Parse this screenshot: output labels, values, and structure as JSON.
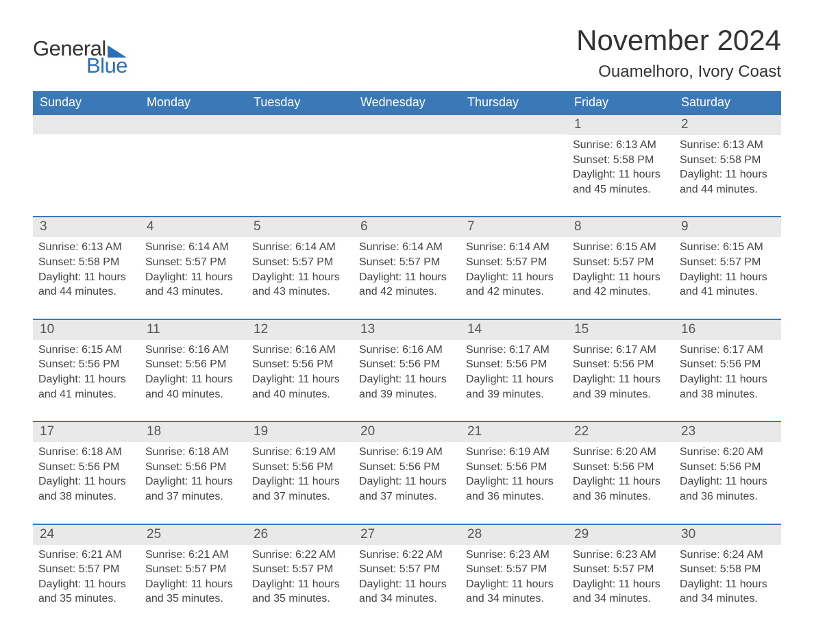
{
  "logo": {
    "word1": "General",
    "word2": "Blue"
  },
  "title": "November 2024",
  "location": "Ouamelhoro, Ivory Coast",
  "colors": {
    "header_bg": "#3b78b8",
    "header_text": "#ffffff",
    "daynum_bg": "#e9e9e9",
    "text": "#444444",
    "accent": "#2a70b8",
    "page_bg": "#ffffff"
  },
  "typography": {
    "title_fontsize": 42,
    "location_fontsize": 24,
    "dow_fontsize": 18,
    "daynum_fontsize": 19,
    "body_fontsize": 16
  },
  "days_of_week": [
    "Sunday",
    "Monday",
    "Tuesday",
    "Wednesday",
    "Thursday",
    "Friday",
    "Saturday"
  ],
  "weeks": [
    [
      {
        "empty": true
      },
      {
        "empty": true
      },
      {
        "empty": true
      },
      {
        "empty": true
      },
      {
        "empty": true
      },
      {
        "day": "1",
        "sunrise": "Sunrise: 6:13 AM",
        "sunset": "Sunset: 5:58 PM",
        "dl1": "Daylight: 11 hours",
        "dl2": "and 45 minutes."
      },
      {
        "day": "2",
        "sunrise": "Sunrise: 6:13 AM",
        "sunset": "Sunset: 5:58 PM",
        "dl1": "Daylight: 11 hours",
        "dl2": "and 44 minutes."
      }
    ],
    [
      {
        "day": "3",
        "sunrise": "Sunrise: 6:13 AM",
        "sunset": "Sunset: 5:58 PM",
        "dl1": "Daylight: 11 hours",
        "dl2": "and 44 minutes."
      },
      {
        "day": "4",
        "sunrise": "Sunrise: 6:14 AM",
        "sunset": "Sunset: 5:57 PM",
        "dl1": "Daylight: 11 hours",
        "dl2": "and 43 minutes."
      },
      {
        "day": "5",
        "sunrise": "Sunrise: 6:14 AM",
        "sunset": "Sunset: 5:57 PM",
        "dl1": "Daylight: 11 hours",
        "dl2": "and 43 minutes."
      },
      {
        "day": "6",
        "sunrise": "Sunrise: 6:14 AM",
        "sunset": "Sunset: 5:57 PM",
        "dl1": "Daylight: 11 hours",
        "dl2": "and 42 minutes."
      },
      {
        "day": "7",
        "sunrise": "Sunrise: 6:14 AM",
        "sunset": "Sunset: 5:57 PM",
        "dl1": "Daylight: 11 hours",
        "dl2": "and 42 minutes."
      },
      {
        "day": "8",
        "sunrise": "Sunrise: 6:15 AM",
        "sunset": "Sunset: 5:57 PM",
        "dl1": "Daylight: 11 hours",
        "dl2": "and 42 minutes."
      },
      {
        "day": "9",
        "sunrise": "Sunrise: 6:15 AM",
        "sunset": "Sunset: 5:57 PM",
        "dl1": "Daylight: 11 hours",
        "dl2": "and 41 minutes."
      }
    ],
    [
      {
        "day": "10",
        "sunrise": "Sunrise: 6:15 AM",
        "sunset": "Sunset: 5:56 PM",
        "dl1": "Daylight: 11 hours",
        "dl2": "and 41 minutes."
      },
      {
        "day": "11",
        "sunrise": "Sunrise: 6:16 AM",
        "sunset": "Sunset: 5:56 PM",
        "dl1": "Daylight: 11 hours",
        "dl2": "and 40 minutes."
      },
      {
        "day": "12",
        "sunrise": "Sunrise: 6:16 AM",
        "sunset": "Sunset: 5:56 PM",
        "dl1": "Daylight: 11 hours",
        "dl2": "and 40 minutes."
      },
      {
        "day": "13",
        "sunrise": "Sunrise: 6:16 AM",
        "sunset": "Sunset: 5:56 PM",
        "dl1": "Daylight: 11 hours",
        "dl2": "and 39 minutes."
      },
      {
        "day": "14",
        "sunrise": "Sunrise: 6:17 AM",
        "sunset": "Sunset: 5:56 PM",
        "dl1": "Daylight: 11 hours",
        "dl2": "and 39 minutes."
      },
      {
        "day": "15",
        "sunrise": "Sunrise: 6:17 AM",
        "sunset": "Sunset: 5:56 PM",
        "dl1": "Daylight: 11 hours",
        "dl2": "and 39 minutes."
      },
      {
        "day": "16",
        "sunrise": "Sunrise: 6:17 AM",
        "sunset": "Sunset: 5:56 PM",
        "dl1": "Daylight: 11 hours",
        "dl2": "and 38 minutes."
      }
    ],
    [
      {
        "day": "17",
        "sunrise": "Sunrise: 6:18 AM",
        "sunset": "Sunset: 5:56 PM",
        "dl1": "Daylight: 11 hours",
        "dl2": "and 38 minutes."
      },
      {
        "day": "18",
        "sunrise": "Sunrise: 6:18 AM",
        "sunset": "Sunset: 5:56 PM",
        "dl1": "Daylight: 11 hours",
        "dl2": "and 37 minutes."
      },
      {
        "day": "19",
        "sunrise": "Sunrise: 6:19 AM",
        "sunset": "Sunset: 5:56 PM",
        "dl1": "Daylight: 11 hours",
        "dl2": "and 37 minutes."
      },
      {
        "day": "20",
        "sunrise": "Sunrise: 6:19 AM",
        "sunset": "Sunset: 5:56 PM",
        "dl1": "Daylight: 11 hours",
        "dl2": "and 37 minutes."
      },
      {
        "day": "21",
        "sunrise": "Sunrise: 6:19 AM",
        "sunset": "Sunset: 5:56 PM",
        "dl1": "Daylight: 11 hours",
        "dl2": "and 36 minutes."
      },
      {
        "day": "22",
        "sunrise": "Sunrise: 6:20 AM",
        "sunset": "Sunset: 5:56 PM",
        "dl1": "Daylight: 11 hours",
        "dl2": "and 36 minutes."
      },
      {
        "day": "23",
        "sunrise": "Sunrise: 6:20 AM",
        "sunset": "Sunset: 5:56 PM",
        "dl1": "Daylight: 11 hours",
        "dl2": "and 36 minutes."
      }
    ],
    [
      {
        "day": "24",
        "sunrise": "Sunrise: 6:21 AM",
        "sunset": "Sunset: 5:57 PM",
        "dl1": "Daylight: 11 hours",
        "dl2": "and 35 minutes."
      },
      {
        "day": "25",
        "sunrise": "Sunrise: 6:21 AM",
        "sunset": "Sunset: 5:57 PM",
        "dl1": "Daylight: 11 hours",
        "dl2": "and 35 minutes."
      },
      {
        "day": "26",
        "sunrise": "Sunrise: 6:22 AM",
        "sunset": "Sunset: 5:57 PM",
        "dl1": "Daylight: 11 hours",
        "dl2": "and 35 minutes."
      },
      {
        "day": "27",
        "sunrise": "Sunrise: 6:22 AM",
        "sunset": "Sunset: 5:57 PM",
        "dl1": "Daylight: 11 hours",
        "dl2": "and 34 minutes."
      },
      {
        "day": "28",
        "sunrise": "Sunrise: 6:23 AM",
        "sunset": "Sunset: 5:57 PM",
        "dl1": "Daylight: 11 hours",
        "dl2": "and 34 minutes."
      },
      {
        "day": "29",
        "sunrise": "Sunrise: 6:23 AM",
        "sunset": "Sunset: 5:57 PM",
        "dl1": "Daylight: 11 hours",
        "dl2": "and 34 minutes."
      },
      {
        "day": "30",
        "sunrise": "Sunrise: 6:24 AM",
        "sunset": "Sunset: 5:58 PM",
        "dl1": "Daylight: 11 hours",
        "dl2": "and 34 minutes."
      }
    ]
  ]
}
